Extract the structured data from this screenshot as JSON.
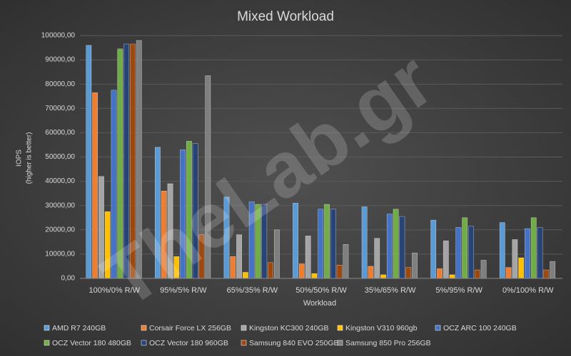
{
  "chart_data": {
    "type": "bar",
    "title": "Mixed  Workload",
    "x_label": "Workload",
    "y_label": [
      "IOPS",
      "(higher is better)"
    ],
    "watermark": "TheLab.gr",
    "categories": [
      "100%/0% R/W",
      "95%/5% R/W",
      "65%/35% R/W",
      "50%/50% R/W",
      "35%/65% R/W",
      "5%/95% R/W",
      "0%/100% R/W"
    ],
    "series": [
      {
        "name": "AMD R7 240GB",
        "color": "#5b9bd5",
        "values": [
          96000,
          54000,
          33500,
          31000,
          29500,
          24000,
          23000
        ]
      },
      {
        "name": "Corsair Force LX 256GB",
        "color": "#ed7d31",
        "values": [
          76500,
          36000,
          9000,
          6000,
          5000,
          4000,
          4500
        ]
      },
      {
        "name": "Kingston KC300 240GB",
        "color": "#a5a5a5",
        "values": [
          42000,
          39000,
          18000,
          17500,
          16500,
          15500,
          16000
        ]
      },
      {
        "name": "Kingston V310 960gb",
        "color": "#ffc000",
        "values": [
          27500,
          9000,
          2500,
          2000,
          1500,
          1500,
          8500
        ]
      },
      {
        "name": "OCZ ARC 100 240GB",
        "color": "#4472c4",
        "values": [
          77500,
          53000,
          31500,
          28500,
          26500,
          21000,
          20500
        ]
      },
      {
        "name": "OCZ Vector 180 480GB",
        "color": "#70ad47",
        "values": [
          94500,
          56500,
          30500,
          30500,
          28500,
          25000,
          25000
        ]
      },
      {
        "name": "OCZ Vector 180 960GB",
        "color": "#264478",
        "values": [
          96500,
          55500,
          30500,
          28500,
          25500,
          21500,
          21000
        ]
      },
      {
        "name": "Samsung 840 EVO 250GB",
        "color": "#9e480e",
        "values": [
          96500,
          18000,
          6500,
          5500,
          4500,
          3500,
          3500
        ]
      },
      {
        "name": "Samsung 850 Pro 256GB",
        "color": "#7f7f7f",
        "values": [
          98000,
          83500,
          20000,
          14000,
          10500,
          7500,
          7000
        ]
      }
    ],
    "ylim": [
      0,
      100000
    ],
    "yticks": [
      {
        "value": 0,
        "label": "0,00"
      },
      {
        "value": 10000,
        "label": "10000,00"
      },
      {
        "value": 20000,
        "label": "20000,00"
      },
      {
        "value": 30000,
        "label": "30000,00"
      },
      {
        "value": 40000,
        "label": "40000,00"
      },
      {
        "value": 50000,
        "label": "50000,00"
      },
      {
        "value": 60000,
        "label": "60000,00"
      },
      {
        "value": 70000,
        "label": "70000,00"
      },
      {
        "value": 80000,
        "label": "80000,00"
      },
      {
        "value": 90000,
        "label": "90000,00"
      },
      {
        "value": 100000,
        "label": "100000,00"
      }
    ],
    "grid": true,
    "legend": "bottom"
  }
}
